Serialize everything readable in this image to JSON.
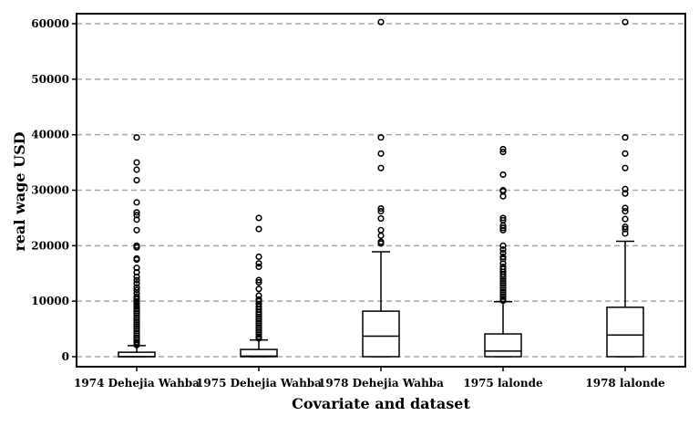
{
  "chart_data": {
    "type": "box",
    "title": "",
    "xlabel": "Covariate and dataset",
    "ylabel": "real wage USD",
    "ylim": [
      -1800,
      62000
    ],
    "yticks": [
      0,
      10000,
      20000,
      30000,
      40000,
      50000,
      60000
    ],
    "grid": "horizontal dashed",
    "categories": [
      "1974 Dehejia Wahba",
      "1975 Dehejia Wahba",
      "1978 Dehejia Wahba",
      "1975 lalonde",
      "1978 lalonde"
    ],
    "boxes": [
      {
        "category": "1974 Dehejia Wahba",
        "whisker_low": 0,
        "q1": 0,
        "median": 0,
        "q3": 800,
        "whisker_high": 2000,
        "outliers": [
          39500,
          35000,
          33700,
          31800,
          27800,
          26000,
          25500,
          24700,
          22800,
          20000,
          19700,
          17700,
          17500,
          16000,
          15200,
          14400,
          13800,
          13200,
          12500,
          12000,
          11400,
          10800,
          10400,
          10000,
          9700,
          9300,
          9000,
          8600,
          8200,
          7800,
          7400,
          7000,
          6600,
          6200,
          5800,
          5400,
          5000,
          4600,
          4200,
          3800,
          3400,
          3000,
          2600,
          2300,
          2100
        ]
      },
      {
        "category": "1975 Dehejia Wahba",
        "whisker_low": 0,
        "q1": 0,
        "median": 100,
        "q3": 1300,
        "whisker_high": 3000,
        "outliers": [
          25000,
          23000,
          18000,
          16800,
          16200,
          13800,
          13400,
          12200,
          11000,
          10300,
          10000,
          9500,
          9000,
          8500,
          8000,
          7600,
          7200,
          6800,
          6400,
          6000,
          5600,
          5200,
          4800,
          4400,
          4000,
          3600,
          3300
        ]
      },
      {
        "category": "1978 Dehejia Wahba",
        "whisker_low": 0,
        "q1": 0,
        "median": 3700,
        "q3": 8200,
        "whisker_high": 18900,
        "outliers": [
          60300,
          39500,
          36600,
          34000,
          26700,
          26200,
          24900,
          22800,
          21800,
          20700,
          20400
        ]
      },
      {
        "category": "1975 lalonde",
        "whisker_low": 0,
        "q1": 0,
        "median": 1000,
        "q3": 4100,
        "whisker_high": 9900,
        "outliers": [
          37400,
          36900,
          32800,
          30000,
          29800,
          28900,
          25000,
          24600,
          23600,
          23200,
          22800,
          20000,
          19300,
          18700,
          18000,
          17600,
          16800,
          16200,
          15800,
          15300,
          14800,
          14400,
          14000,
          13600,
          13200,
          12800,
          12400,
          12000,
          11600,
          11200,
          10800,
          10400,
          10100
        ]
      },
      {
        "category": "1978 lalonde",
        "whisker_low": 0,
        "q1": 0,
        "median": 3900,
        "q3": 8900,
        "whisker_high": 20800,
        "outliers": [
          60300,
          39500,
          36600,
          34000,
          30200,
          29400,
          26800,
          26200,
          24800,
          23400,
          23000,
          22200
        ]
      }
    ]
  }
}
